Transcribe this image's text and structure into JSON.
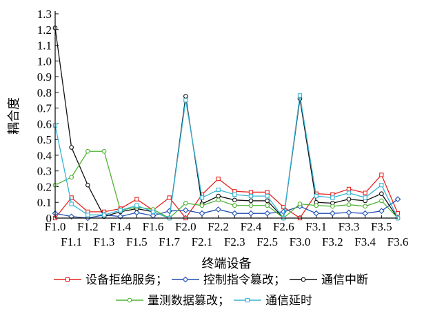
{
  "chart_data": {
    "type": "line",
    "xlabel": "终端设备",
    "ylabel": "耦合度",
    "ylim": [
      0,
      1.3
    ],
    "yticks": [
      "0",
      "0.1",
      "0.2",
      "0.3",
      "0.4",
      "0.5",
      "0.6",
      "0.7",
      "0.8",
      "0.9",
      "1.0",
      "1.1",
      "1.2",
      "1.3"
    ],
    "categories": [
      "F1.0",
      "F1.1",
      "F1.2",
      "F1.3",
      "F1.4",
      "F1.5",
      "F1.6",
      "F1.7",
      "F2.0",
      "F2.1",
      "F2.2",
      "F2.3",
      "F2.4",
      "F2.5",
      "F2.6",
      "F3.0",
      "F3.1",
      "F3.2",
      "F3.3",
      "F3.4",
      "F3.5",
      "F3.6"
    ],
    "legend_placement": "bottom",
    "legend_separator": "；",
    "series": [
      {
        "name": "设备拒绝服务",
        "color": "#e8231f",
        "marker": "square",
        "values": [
          0.0,
          0.13,
          0.04,
          0.04,
          0.06,
          0.12,
          0.05,
          0.13,
          0.0,
          0.15,
          0.25,
          0.17,
          0.165,
          0.165,
          0.07,
          0.0,
          0.155,
          0.15,
          0.185,
          0.16,
          0.275,
          0.03
        ]
      },
      {
        "name": "控制指令篡改",
        "color": "#1f4fb4",
        "marker": "diamond",
        "values": [
          0.03,
          0.01,
          0.0,
          0.02,
          0.01,
          0.035,
          0.015,
          0.045,
          0.05,
          0.03,
          0.055,
          0.03,
          0.03,
          0.03,
          0.04,
          0.075,
          0.03,
          0.03,
          0.035,
          0.03,
          0.045,
          0.12
        ]
      },
      {
        "name": "通信中断",
        "color": "#111111",
        "marker": "circle",
        "values": [
          1.21,
          0.45,
          0.21,
          0.01,
          0.04,
          0.06,
          0.04,
          0.0,
          0.775,
          0.09,
          0.14,
          0.115,
          0.11,
          0.11,
          0.0,
          0.76,
          0.1,
          0.095,
          0.12,
          0.11,
          0.155,
          0.0
        ]
      },
      {
        "name": "量测数据篡改",
        "color": "#4fb233",
        "marker": "circle",
        "values": [
          0.21,
          0.26,
          0.425,
          0.425,
          0.05,
          0.07,
          0.055,
          0.0,
          0.095,
          0.08,
          0.115,
          0.08,
          0.08,
          0.08,
          0.0,
          0.09,
          0.08,
          0.075,
          0.085,
          0.075,
          0.11,
          0.0
        ]
      },
      {
        "name": "通信延时",
        "color": "#37b4d6",
        "marker": "square",
        "values": [
          0.59,
          0.09,
          0.02,
          0.02,
          0.05,
          0.08,
          0.04,
          0.0,
          0.75,
          0.13,
          0.18,
          0.15,
          0.14,
          0.14,
          0.0,
          0.78,
          0.14,
          0.13,
          0.16,
          0.13,
          0.21,
          0.0
        ]
      }
    ],
    "legend_rows": [
      [
        0,
        1,
        2
      ],
      [
        3,
        4
      ]
    ]
  }
}
